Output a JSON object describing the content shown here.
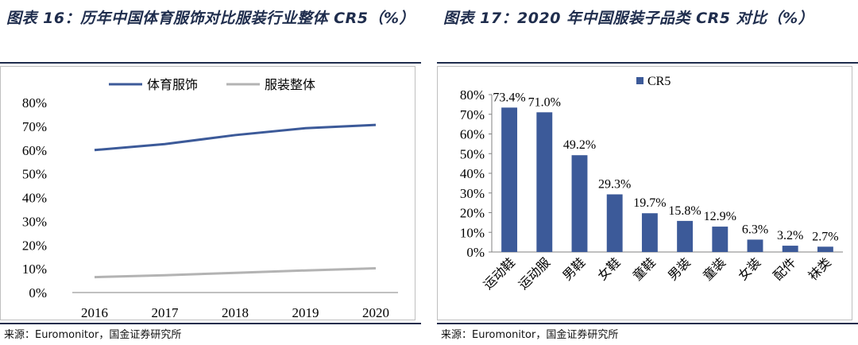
{
  "left": {
    "title": "图表 16：历年中国体育服饰对比服装行业整体 CR5（%）",
    "source": "来源：Euromonitor，国金证券研究所",
    "chart_data": {
      "type": "line",
      "x": [
        "2016",
        "2017",
        "2018",
        "2019",
        "2020"
      ],
      "series": [
        {
          "name": "体育服饰",
          "values": [
            60.0,
            62.5,
            66.3,
            69.2,
            70.6
          ],
          "color": "#3c5a99"
        },
        {
          "name": "服装整体",
          "values": [
            6.5,
            7.3,
            8.3,
            9.3,
            10.2
          ],
          "color": "#b3b3b3"
        }
      ],
      "yticks": [
        "0%",
        "10%",
        "20%",
        "30%",
        "40%",
        "50%",
        "60%",
        "70%",
        "80%"
      ],
      "ylim": [
        0,
        80
      ],
      "legend": "top",
      "grid": false
    }
  },
  "right": {
    "title": "图表 17：2020 年中国服装子品类 CR5 对比（%）",
    "source": "来源：Euromonitor，国金证券研究所",
    "chart_data": {
      "type": "bar",
      "categories": [
        "运动鞋",
        "运动服",
        "男鞋",
        "女鞋",
        "童鞋",
        "男装",
        "童装",
        "女装",
        "配件",
        "袜类"
      ],
      "series": [
        {
          "name": "CR5",
          "values": [
            73.4,
            71.0,
            49.2,
            29.3,
            19.7,
            15.8,
            12.9,
            6.3,
            3.2,
            2.7
          ],
          "color": "#3c5a99"
        }
      ],
      "data_labels": [
        "73.4%",
        "71.0%",
        "49.2%",
        "29.3%",
        "19.7%",
        "15.8%",
        "12.9%",
        "6.3%",
        "3.2%",
        "2.7%"
      ],
      "yticks": [
        "0%",
        "10%",
        "20%",
        "30%",
        "40%",
        "50%",
        "60%",
        "70%",
        "80%"
      ],
      "ylim": [
        0,
        80
      ],
      "legend": "top-left",
      "grid": false
    }
  }
}
